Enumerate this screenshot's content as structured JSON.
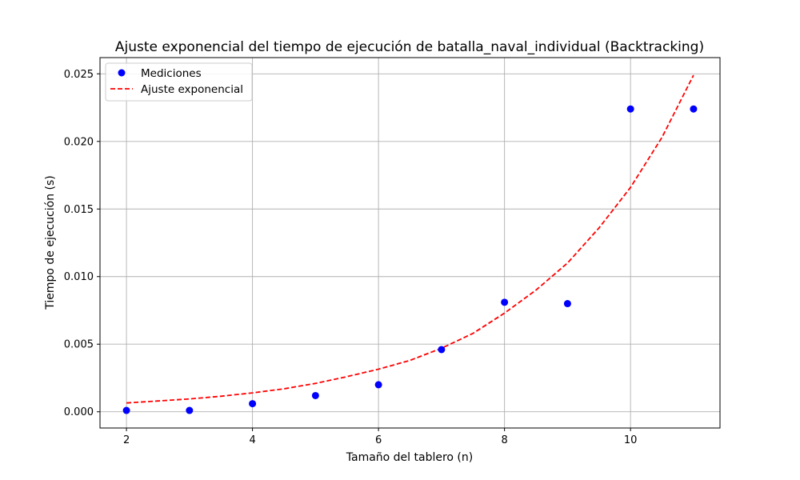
{
  "chart_data": {
    "type": "scatter",
    "title": "Ajuste exponencial del tiempo de ejecución de batalla_naval_individual (Backtracking)",
    "xlabel": "Tamaño del tablero (n)",
    "ylabel": "Tiempo de ejecución (s)",
    "xlim": [
      1.58,
      11.42
    ],
    "ylim": [
      -0.0012,
      0.0262
    ],
    "x_ticks": [
      2,
      4,
      6,
      8,
      10
    ],
    "x_tick_labels": [
      "2",
      "4",
      "6",
      "8",
      "10"
    ],
    "y_ticks": [
      0.0,
      0.005,
      0.01,
      0.015,
      0.02,
      0.025
    ],
    "y_tick_labels": [
      "0.000",
      "0.005",
      "0.010",
      "0.015",
      "0.020",
      "0.025"
    ],
    "grid": true,
    "legend_position": "top-left",
    "series": [
      {
        "name": "Mediciones",
        "kind": "markers",
        "color": "#0000ff",
        "x": [
          2,
          3,
          4,
          5,
          6,
          7,
          8,
          9,
          10,
          11
        ],
        "y": [
          0.0001,
          0.0001,
          0.0006,
          0.0012,
          0.002,
          0.0046,
          0.0081,
          0.008,
          0.0224,
          0.0224
        ]
      },
      {
        "name": "Ajuste exponencial",
        "kind": "dashed-line",
        "color": "#ff0000",
        "x": [
          2,
          2.5,
          3,
          3.5,
          4,
          4.5,
          5,
          5.5,
          6,
          6.5,
          7,
          7.5,
          8,
          8.5,
          9,
          9.5,
          10,
          10.5,
          11
        ],
        "y": [
          0.00065,
          0.0008,
          0.00095,
          0.00115,
          0.0014,
          0.0017,
          0.0021,
          0.0026,
          0.00315,
          0.0038,
          0.0047,
          0.0058,
          0.0073,
          0.009,
          0.011,
          0.0136,
          0.0166,
          0.0203,
          0.0249
        ]
      }
    ]
  }
}
